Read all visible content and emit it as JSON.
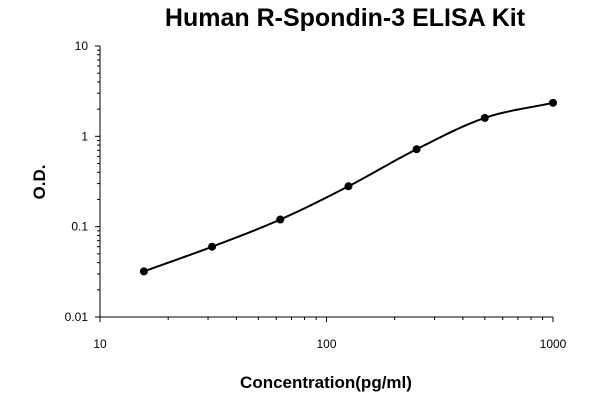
{
  "chart_data": {
    "type": "scatter",
    "title": "Human R-Spondin-3 ELISA Kit",
    "xlabel": "Concentration(pg/ml)",
    "ylabel": "O.D.",
    "xscale": "log",
    "yscale": "log",
    "xlim": [
      10,
      1000
    ],
    "ylim": [
      0.01,
      10
    ],
    "x_ticks": [
      "10",
      "100",
      "1000"
    ],
    "y_ticks": [
      "0.01",
      "0.1",
      "1",
      "10"
    ],
    "grid": false,
    "legend": "none",
    "series": [
      {
        "x": [
          15.625,
          31.25,
          62.5,
          125,
          250,
          500,
          1000
        ],
        "y": [
          0.032,
          0.06,
          0.12,
          0.28,
          0.72,
          1.6,
          2.35
        ]
      }
    ]
  }
}
